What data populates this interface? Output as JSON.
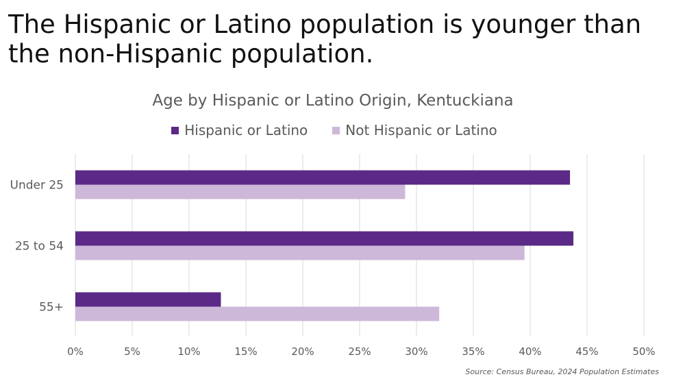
{
  "headline": "The Hispanic or Latino population is younger than the non-Hispanic population.",
  "source": "Source: Census Bureau, 2024 Population Estimates",
  "chart_data": {
    "type": "bar",
    "orientation": "horizontal",
    "title": "Age by Hispanic or Latino Origin, Kentuckiana",
    "categories": [
      "Under 25",
      "25 to 54",
      "55+"
    ],
    "series": [
      {
        "name": "Hispanic or Latino",
        "color": "#5b2a86",
        "values": [
          43.5,
          43.8,
          12.8
        ]
      },
      {
        "name": "Not Hispanic or Latino",
        "color": "#cdb8d9",
        "values": [
          29.0,
          39.5,
          32.0
        ]
      }
    ],
    "xlim": [
      0,
      50
    ],
    "xticks": [
      0,
      5,
      10,
      15,
      20,
      25,
      30,
      35,
      40,
      45,
      50
    ],
    "tick_labels": [
      "0%",
      "5%",
      "10%",
      "15%",
      "20%",
      "25%",
      "30%",
      "35%",
      "40%",
      "45%",
      "50%"
    ],
    "xlabel": "",
    "ylabel": "",
    "grid": true,
    "legend_position": "top"
  }
}
